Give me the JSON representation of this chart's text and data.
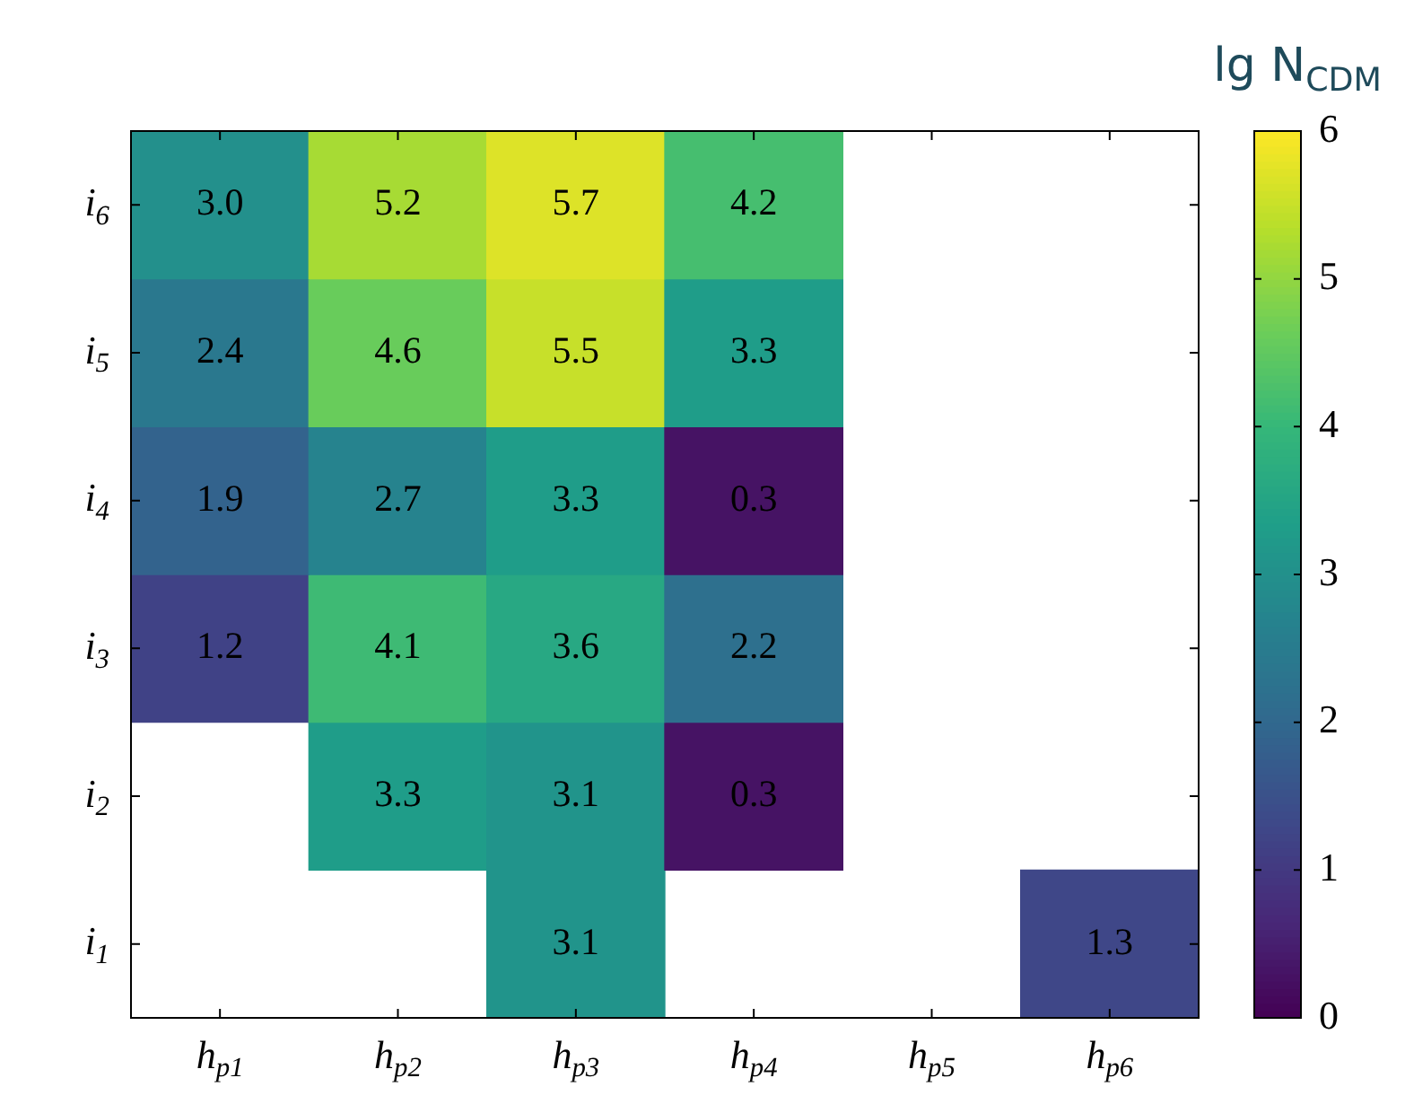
{
  "chart_data": {
    "type": "heatmap",
    "clabel": "lg N$_{CDM}$",
    "categories": [
      "h$_{p1}$",
      "h$_{p2}$",
      "h$_{p3}$",
      "h$_{p4}$",
      "h$_{p5}$",
      "h$_{p6}$"
    ],
    "y_categories": [
      "i$_{6}$",
      "i$_{5}$",
      "i$_{4}$",
      "i$_{3}$",
      "i$_{2}$",
      "i$_{1}$"
    ],
    "cells": [
      [
        3.0,
        5.2,
        5.7,
        4.2,
        null,
        null
      ],
      [
        2.4,
        4.6,
        5.5,
        3.3,
        null,
        null
      ],
      [
        1.9,
        2.7,
        3.3,
        0.3,
        null,
        null
      ],
      [
        1.2,
        4.1,
        3.6,
        2.2,
        null,
        null
      ],
      [
        null,
        3.3,
        3.1,
        0.3,
        null,
        null
      ],
      [
        null,
        null,
        3.1,
        null,
        null,
        1.3
      ]
    ],
    "cell_labels": [
      [
        "3.0",
        "5.2",
        "5.7",
        "4.2",
        null,
        null
      ],
      [
        "2.4",
        "4.6",
        "5.5",
        "3.3",
        null,
        null
      ],
      [
        "1.9",
        "2.7",
        "3.3",
        "0.3",
        null,
        null
      ],
      [
        "1.2",
        "4.1",
        "3.6",
        "2.2",
        null,
        null
      ],
      [
        null,
        "3.3",
        "3.1",
        "0.3",
        null,
        null
      ],
      [
        null,
        null,
        "3.1",
        null,
        null,
        "1.3"
      ]
    ],
    "clim": [
      0,
      6
    ],
    "cticks": [
      0,
      1,
      2,
      3,
      4,
      5,
      6
    ]
  }
}
